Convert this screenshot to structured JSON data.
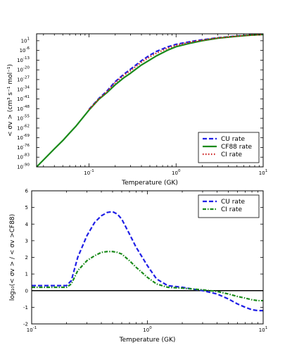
{
  "chart_data": [
    {
      "type": "line",
      "xlabel": "Temperature (GK)",
      "ylabel": "< σv > (cm³ s⁻¹ mol⁻¹)",
      "xscale": "log",
      "yscale": "log",
      "xlim": [
        0.025,
        10
      ],
      "ylim": [
        -90,
        6
      ],
      "x_ticks": [
        {
          "v": 0.1,
          "base": "10",
          "exp": "-1"
        },
        {
          "v": 1,
          "base": "10",
          "exp": "0"
        },
        {
          "v": 10,
          "base": "10",
          "exp": "1"
        }
      ],
      "y_ticks": [
        {
          "v": 1,
          "base": "10",
          "exp": "1"
        },
        {
          "v": -6,
          "base": "10",
          "exp": "-6"
        },
        {
          "v": -13,
          "base": "10",
          "exp": "-13"
        },
        {
          "v": -20,
          "base": "10",
          "exp": "-20"
        },
        {
          "v": -27,
          "base": "10",
          "exp": "-27"
        },
        {
          "v": -34,
          "base": "10",
          "exp": "-34"
        },
        {
          "v": -41,
          "base": "10",
          "exp": "-41"
        },
        {
          "v": -48,
          "base": "10",
          "exp": "-48"
        },
        {
          "v": -55,
          "base": "10",
          "exp": "-55"
        },
        {
          "v": -62,
          "base": "10",
          "exp": "-62"
        },
        {
          "v": -69,
          "base": "10",
          "exp": "-69"
        },
        {
          "v": -76,
          "base": "10",
          "exp": "-76"
        },
        {
          "v": -83,
          "base": "10",
          "exp": "-83"
        },
        {
          "v": -90,
          "base": "10",
          "exp": "-90"
        }
      ],
      "legend_position": "lower-right",
      "series": [
        {
          "name": "CU rate",
          "color": "#1f1fe6",
          "style": "dashed",
          "x": [
            0.1,
            0.13,
            0.16,
            0.2,
            0.25,
            0.3,
            0.4,
            0.5,
            0.6,
            0.8,
            1,
            1.5,
            2,
            3,
            5,
            7,
            10
          ],
          "y": [
            -48.5,
            -40.6,
            -35.4,
            -28.5,
            -23.3,
            -19.5,
            -13.4,
            -9.4,
            -6.6,
            -3.4,
            -1.6,
            0.5,
            1.7,
            3.1,
            4.4,
            5.1,
            5.5
          ]
        },
        {
          "name": "CF88 rate",
          "color": "#1a8a1a",
          "style": "solid",
          "x": [
            0.025,
            0.03,
            0.04,
            0.05,
            0.06,
            0.07,
            0.08,
            0.1,
            0.13,
            0.16,
            0.2,
            0.25,
            0.3,
            0.4,
            0.5,
            0.6,
            0.8,
            1,
            1.5,
            2,
            3,
            5,
            7,
            10
          ],
          "y": [
            -90,
            -85,
            -77,
            -71,
            -65.5,
            -61,
            -56.5,
            -49,
            -41.2,
            -36.5,
            -30.8,
            -25.8,
            -22.4,
            -16.5,
            -12.8,
            -9.8,
            -5.8,
            -3.3,
            -0.6,
            1.0,
            2.8,
            4.2,
            5.0,
            5.5
          ]
        },
        {
          "name": "CI rate",
          "color": "#cc2222",
          "style": "dotted",
          "x": [
            0.1,
            0.13,
            0.16,
            0.2,
            0.25,
            0.3,
            0.4,
            0.5,
            0.6,
            0.8,
            1,
            1.5,
            2,
            3,
            5,
            7,
            10
          ],
          "y": [
            -48.7,
            -41.0,
            -35.9,
            -29.2,
            -24.1,
            -20.5,
            -14.5,
            -10.6,
            -7.8,
            -4.4,
            -2.3,
            0.2,
            1.4,
            3.0,
            4.3,
            5.0,
            5.5
          ]
        }
      ]
    },
    {
      "type": "line",
      "xlabel": "Temperature (GK)",
      "ylabel": "log₁₀(< σv > / < σv >CF88)",
      "xscale": "log",
      "xlim": [
        0.1,
        10
      ],
      "ylim": [
        -2,
        6
      ],
      "x_ticks": [
        {
          "v": 0.1,
          "base": "10",
          "exp": "-1"
        },
        {
          "v": 1,
          "base": "10",
          "exp": "0"
        },
        {
          "v": 10,
          "base": "10",
          "exp": "1"
        }
      ],
      "y_ticks": [
        "-2",
        "-1",
        "0",
        "1",
        "2",
        "3",
        "4",
        "5",
        "6"
      ],
      "hline": 0,
      "legend_position": "upper-right",
      "series": [
        {
          "name": "CU rate",
          "color": "#1f1fe6",
          "style": "dashed",
          "x": [
            0.1,
            0.13,
            0.17,
            0.2,
            0.22,
            0.25,
            0.3,
            0.35,
            0.4,
            0.45,
            0.5,
            0.55,
            0.6,
            0.7,
            0.8,
            1,
            1.2,
            1.5,
            2,
            3,
            4,
            5,
            6,
            7,
            8,
            9,
            10
          ],
          "y": [
            0.3,
            0.3,
            0.3,
            0.3,
            0.6,
            2.0,
            3.3,
            4.1,
            4.5,
            4.7,
            4.75,
            4.6,
            4.3,
            3.4,
            2.6,
            1.5,
            0.7,
            0.3,
            0.2,
            0.0,
            -0.2,
            -0.5,
            -0.8,
            -1.0,
            -1.15,
            -1.2,
            -1.2
          ]
        },
        {
          "name": "CI rate",
          "color": "#1a8a1a",
          "style": "dashdot",
          "x": [
            0.1,
            0.13,
            0.17,
            0.2,
            0.22,
            0.25,
            0.3,
            0.35,
            0.4,
            0.45,
            0.5,
            0.55,
            0.6,
            0.7,
            0.8,
            1,
            1.2,
            1.5,
            2,
            3,
            4,
            5,
            6,
            7,
            8,
            9,
            10
          ],
          "y": [
            0.2,
            0.2,
            0.2,
            0.2,
            0.4,
            1.2,
            1.8,
            2.1,
            2.3,
            2.35,
            2.35,
            2.3,
            2.2,
            1.8,
            1.4,
            0.8,
            0.4,
            0.2,
            0.15,
            0.05,
            -0.05,
            -0.2,
            -0.35,
            -0.45,
            -0.55,
            -0.6,
            -0.6
          ]
        }
      ]
    }
  ]
}
